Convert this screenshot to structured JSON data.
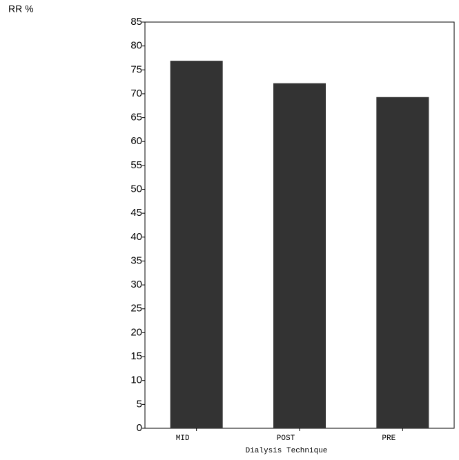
{
  "chart_data": {
    "type": "bar",
    "y_label": "RR %",
    "x_label": "Dialysis Technique",
    "categories": [
      "MID",
      "POST",
      "PRE"
    ],
    "values": [
      76.9,
      72.2,
      69.3
    ],
    "color": "#333333",
    "ylim": [
      0,
      85
    ],
    "yticks": [
      0,
      5,
      10,
      15,
      20,
      25,
      30,
      35,
      40,
      45,
      50,
      55,
      60,
      65,
      70,
      75,
      80,
      85
    ]
  }
}
